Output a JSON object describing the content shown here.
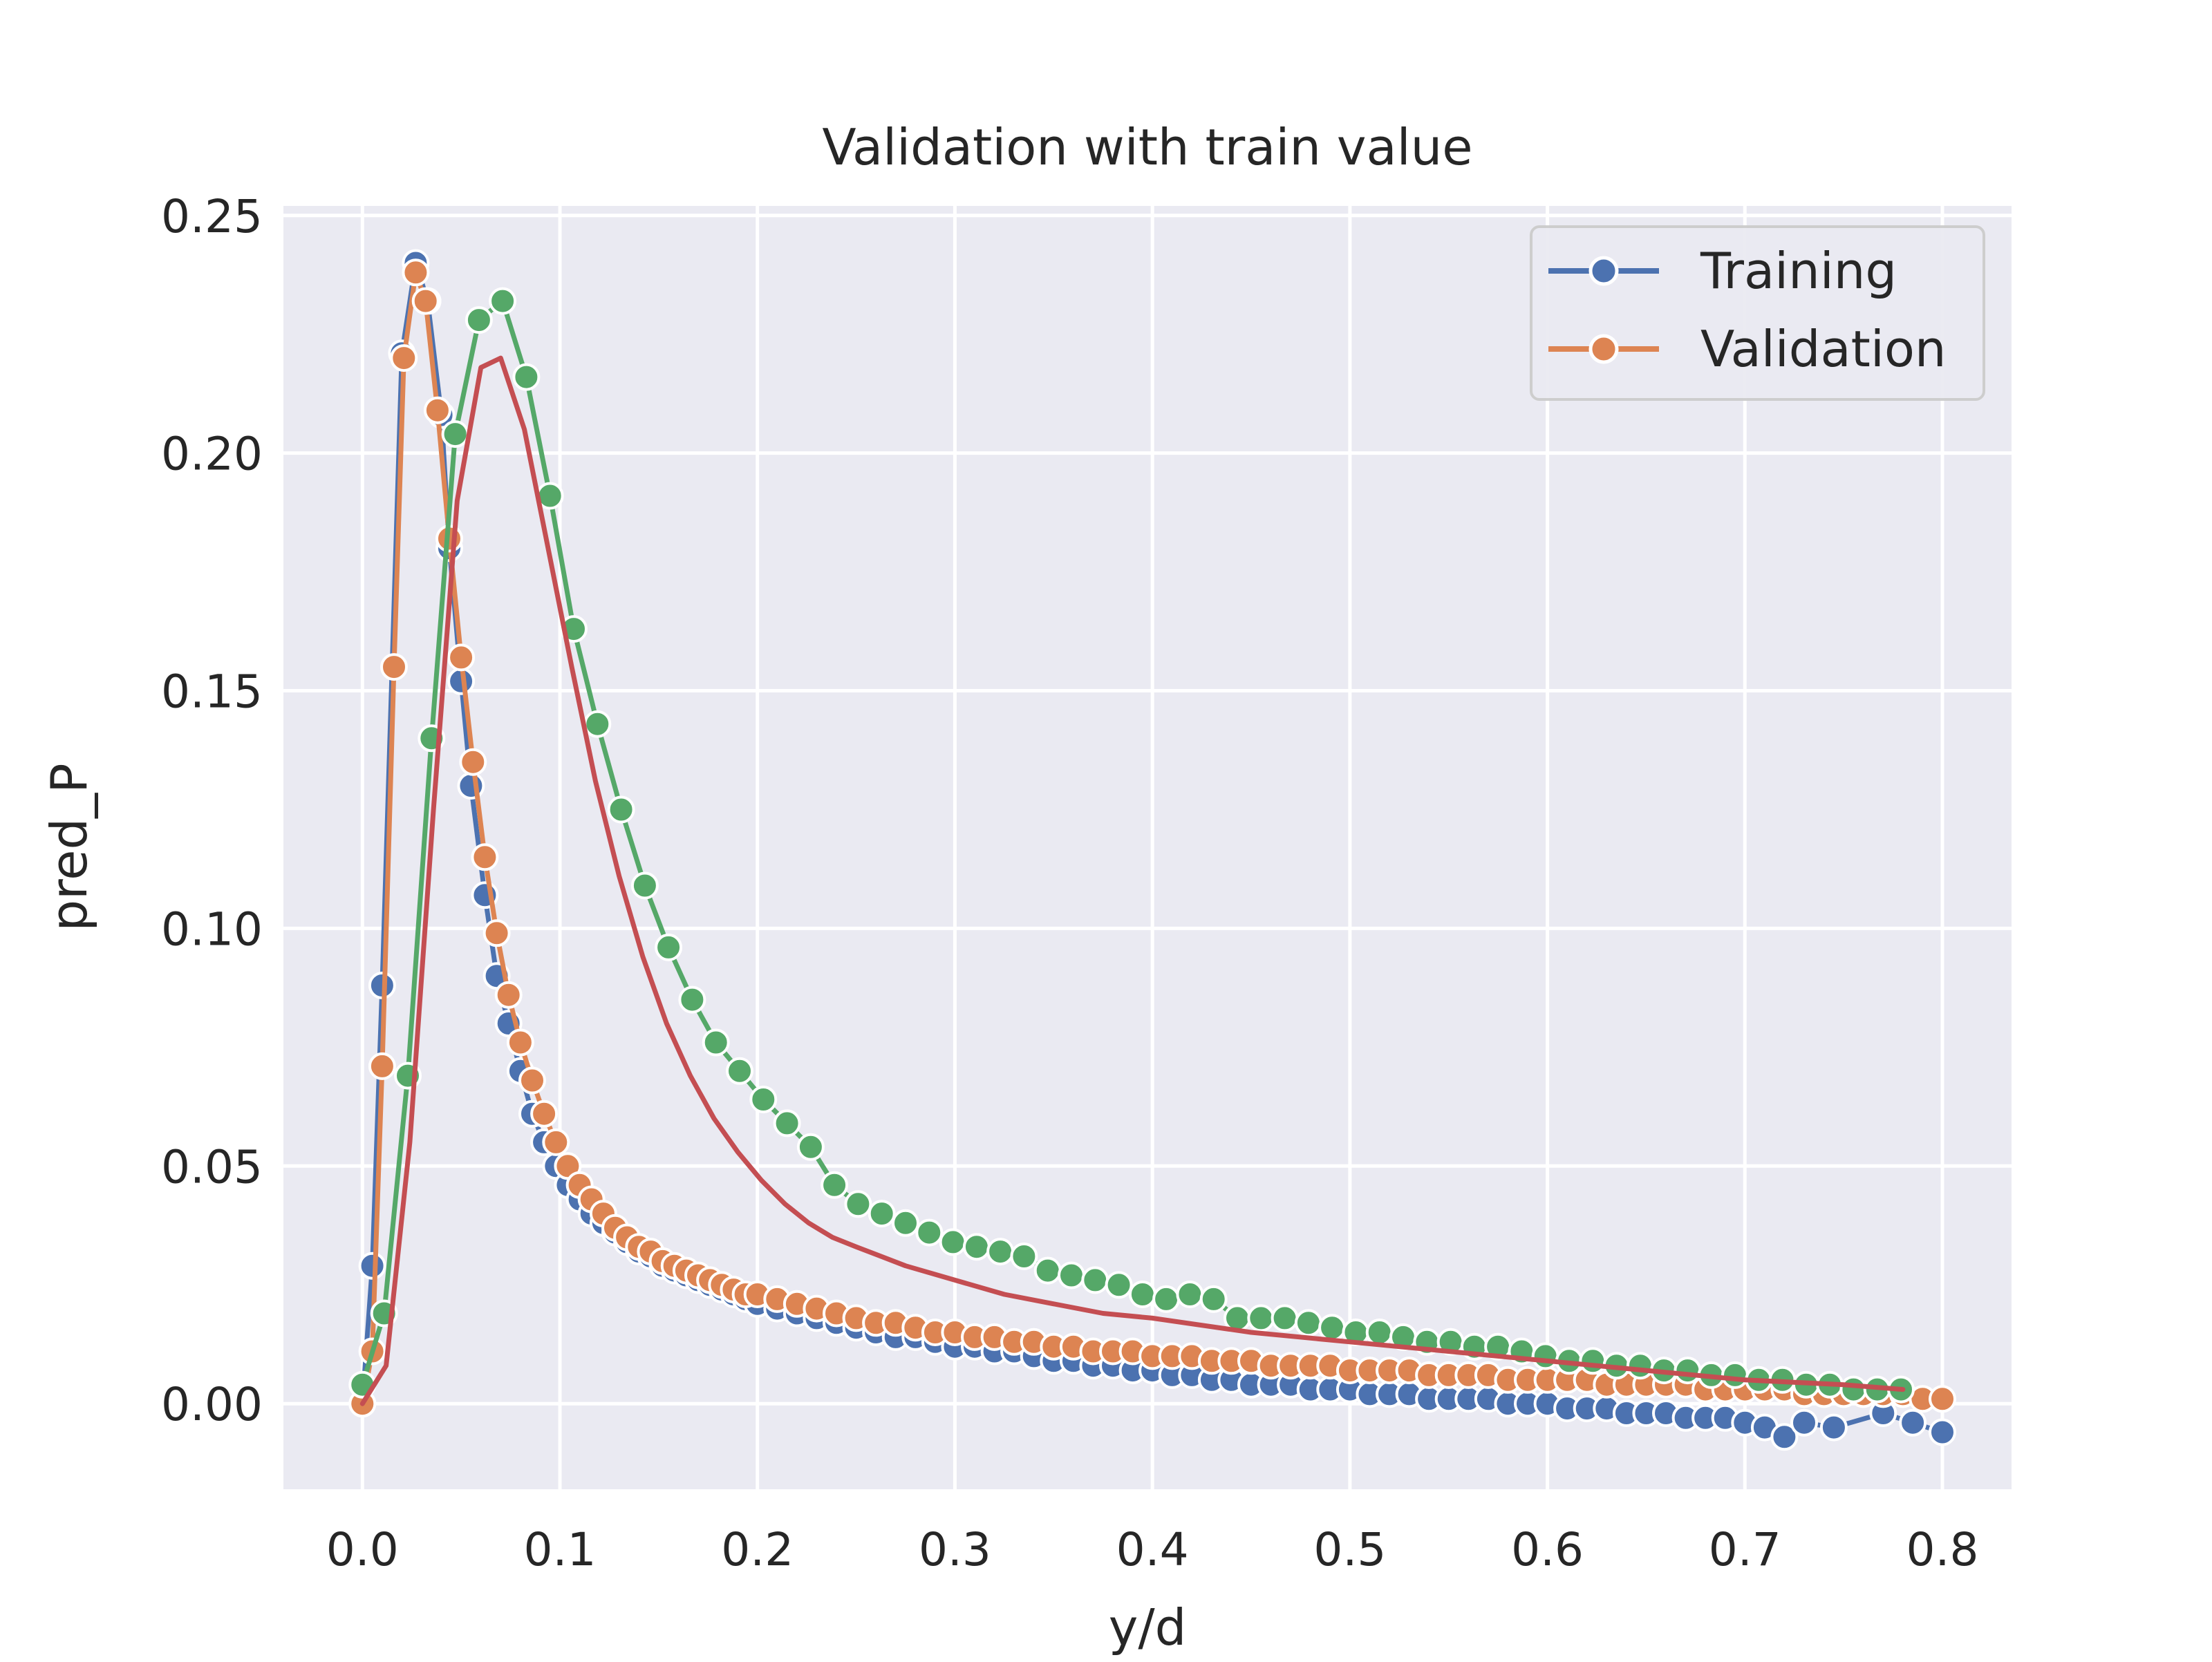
{
  "chart_data": {
    "type": "line",
    "title": "Validation with train value",
    "xlabel": "y/d",
    "ylabel": "pred_P",
    "xlim": [
      -0.04,
      0.835
    ],
    "ylim": [
      -0.018,
      0.252
    ],
    "xticks": [
      0.0,
      0.1,
      0.2,
      0.3,
      0.4,
      0.5,
      0.6,
      0.7,
      0.8
    ],
    "xtick_labels": [
      "0.0",
      "0.1",
      "0.2",
      "0.3",
      "0.4",
      "0.5",
      "0.6",
      "0.7",
      "0.8"
    ],
    "yticks": [
      0.0,
      0.05,
      0.1,
      0.15,
      0.2,
      0.25
    ],
    "ytick_labels": [
      "0.00",
      "0.05",
      "0.10",
      "0.15",
      "0.20",
      "0.25"
    ],
    "grid": true,
    "legend_position": "top-right",
    "series": [
      {
        "name": "Training",
        "color": "#4c72b0",
        "markers": true,
        "points": [
          [
            0.0,
            0.0
          ],
          [
            0.005,
            0.029
          ],
          [
            0.01,
            0.088
          ],
          [
            0.02,
            0.221
          ],
          [
            0.027,
            0.24
          ],
          [
            0.033,
            0.232
          ],
          [
            0.04,
            0.208
          ],
          [
            0.044,
            0.18
          ],
          [
            0.05,
            0.152
          ],
          [
            0.055,
            0.13
          ],
          [
            0.062,
            0.107
          ],
          [
            0.068,
            0.09
          ],
          [
            0.074,
            0.08
          ],
          [
            0.08,
            0.07
          ],
          [
            0.086,
            0.061
          ],
          [
            0.092,
            0.055
          ],
          [
            0.098,
            0.05
          ],
          [
            0.104,
            0.046
          ],
          [
            0.11,
            0.043
          ],
          [
            0.116,
            0.04
          ],
          [
            0.122,
            0.038
          ],
          [
            0.128,
            0.036
          ],
          [
            0.134,
            0.034
          ],
          [
            0.14,
            0.032
          ],
          [
            0.146,
            0.031
          ],
          [
            0.152,
            0.029
          ],
          [
            0.158,
            0.028
          ],
          [
            0.164,
            0.027
          ],
          [
            0.17,
            0.026
          ],
          [
            0.176,
            0.025
          ],
          [
            0.182,
            0.024
          ],
          [
            0.188,
            0.023
          ],
          [
            0.194,
            0.022
          ],
          [
            0.2,
            0.021
          ],
          [
            0.21,
            0.02
          ],
          [
            0.22,
            0.019
          ],
          [
            0.23,
            0.018
          ],
          [
            0.24,
            0.017
          ],
          [
            0.25,
            0.016
          ],
          [
            0.26,
            0.015
          ],
          [
            0.27,
            0.014
          ],
          [
            0.28,
            0.014
          ],
          [
            0.29,
            0.013
          ],
          [
            0.3,
            0.012
          ],
          [
            0.31,
            0.012
          ],
          [
            0.32,
            0.011
          ],
          [
            0.33,
            0.011
          ],
          [
            0.34,
            0.01
          ],
          [
            0.35,
            0.009
          ],
          [
            0.36,
            0.009
          ],
          [
            0.37,
            0.008
          ],
          [
            0.38,
            0.008
          ],
          [
            0.39,
            0.007
          ],
          [
            0.4,
            0.007
          ],
          [
            0.41,
            0.006
          ],
          [
            0.42,
            0.006
          ],
          [
            0.43,
            0.005
          ],
          [
            0.44,
            0.005
          ],
          [
            0.45,
            0.004
          ],
          [
            0.46,
            0.004
          ],
          [
            0.47,
            0.004
          ],
          [
            0.48,
            0.003
          ],
          [
            0.49,
            0.003
          ],
          [
            0.5,
            0.003
          ],
          [
            0.51,
            0.002
          ],
          [
            0.52,
            0.002
          ],
          [
            0.53,
            0.002
          ],
          [
            0.54,
            0.001
          ],
          [
            0.55,
            0.001
          ],
          [
            0.56,
            0.001
          ],
          [
            0.57,
            0.001
          ],
          [
            0.58,
            0.0
          ],
          [
            0.59,
            0.0
          ],
          [
            0.6,
            0.0
          ],
          [
            0.61,
            -0.001
          ],
          [
            0.62,
            -0.001
          ],
          [
            0.63,
            -0.001
          ],
          [
            0.64,
            -0.002
          ],
          [
            0.65,
            -0.002
          ],
          [
            0.66,
            -0.002
          ],
          [
            0.67,
            -0.003
          ],
          [
            0.68,
            -0.003
          ],
          [
            0.69,
            -0.003
          ],
          [
            0.7,
            -0.004
          ],
          [
            0.71,
            -0.005
          ],
          [
            0.72,
            -0.007
          ],
          [
            0.73,
            -0.004
          ],
          [
            0.745,
            -0.005
          ],
          [
            0.77,
            -0.002
          ],
          [
            0.785,
            -0.004
          ],
          [
            0.8,
            -0.006
          ]
        ]
      },
      {
        "name": "Validation",
        "color": "#dd8452",
        "markers": true,
        "points": [
          [
            0.0,
            0.0
          ],
          [
            0.005,
            0.011
          ],
          [
            0.01,
            0.071
          ],
          [
            0.016,
            0.155
          ],
          [
            0.021,
            0.22
          ],
          [
            0.027,
            0.238
          ],
          [
            0.032,
            0.232
          ],
          [
            0.038,
            0.209
          ],
          [
            0.044,
            0.182
          ],
          [
            0.05,
            0.157
          ],
          [
            0.056,
            0.135
          ],
          [
            0.062,
            0.115
          ],
          [
            0.068,
            0.099
          ],
          [
            0.074,
            0.086
          ],
          [
            0.08,
            0.076
          ],
          [
            0.086,
            0.068
          ],
          [
            0.092,
            0.061
          ],
          [
            0.098,
            0.055
          ],
          [
            0.104,
            0.05
          ],
          [
            0.11,
            0.046
          ],
          [
            0.116,
            0.043
          ],
          [
            0.122,
            0.04
          ],
          [
            0.128,
            0.037
          ],
          [
            0.134,
            0.035
          ],
          [
            0.14,
            0.033
          ],
          [
            0.146,
            0.032
          ],
          [
            0.152,
            0.03
          ],
          [
            0.158,
            0.029
          ],
          [
            0.164,
            0.028
          ],
          [
            0.17,
            0.027
          ],
          [
            0.176,
            0.026
          ],
          [
            0.182,
            0.025
          ],
          [
            0.188,
            0.024
          ],
          [
            0.194,
            0.023
          ],
          [
            0.2,
            0.023
          ],
          [
            0.21,
            0.022
          ],
          [
            0.22,
            0.021
          ],
          [
            0.23,
            0.02
          ],
          [
            0.24,
            0.019
          ],
          [
            0.25,
            0.018
          ],
          [
            0.26,
            0.017
          ],
          [
            0.27,
            0.017
          ],
          [
            0.28,
            0.016
          ],
          [
            0.29,
            0.015
          ],
          [
            0.3,
            0.015
          ],
          [
            0.31,
            0.014
          ],
          [
            0.32,
            0.014
          ],
          [
            0.33,
            0.013
          ],
          [
            0.34,
            0.013
          ],
          [
            0.35,
            0.012
          ],
          [
            0.36,
            0.012
          ],
          [
            0.37,
            0.011
          ],
          [
            0.38,
            0.011
          ],
          [
            0.39,
            0.011
          ],
          [
            0.4,
            0.01
          ],
          [
            0.41,
            0.01
          ],
          [
            0.42,
            0.01
          ],
          [
            0.43,
            0.009
          ],
          [
            0.44,
            0.009
          ],
          [
            0.45,
            0.009
          ],
          [
            0.46,
            0.008
          ],
          [
            0.47,
            0.008
          ],
          [
            0.48,
            0.008
          ],
          [
            0.49,
            0.008
          ],
          [
            0.5,
            0.007
          ],
          [
            0.51,
            0.007
          ],
          [
            0.52,
            0.007
          ],
          [
            0.53,
            0.007
          ],
          [
            0.54,
            0.006
          ],
          [
            0.55,
            0.006
          ],
          [
            0.56,
            0.006
          ],
          [
            0.57,
            0.006
          ],
          [
            0.58,
            0.005
          ],
          [
            0.59,
            0.005
          ],
          [
            0.6,
            0.005
          ],
          [
            0.61,
            0.005
          ],
          [
            0.62,
            0.005
          ],
          [
            0.63,
            0.004
          ],
          [
            0.64,
            0.004
          ],
          [
            0.65,
            0.004
          ],
          [
            0.66,
            0.004
          ],
          [
            0.67,
            0.004
          ],
          [
            0.68,
            0.003
          ],
          [
            0.69,
            0.003
          ],
          [
            0.7,
            0.003
          ],
          [
            0.71,
            0.003
          ],
          [
            0.72,
            0.003
          ],
          [
            0.73,
            0.002
          ],
          [
            0.74,
            0.002
          ],
          [
            0.75,
            0.002
          ],
          [
            0.76,
            0.002
          ],
          [
            0.77,
            0.002
          ],
          [
            0.78,
            0.002
          ],
          [
            0.79,
            0.001
          ],
          [
            0.8,
            0.001
          ]
        ]
      },
      {
        "color": "#55a868",
        "markers": true,
        "points": [
          [
            0.0,
            0.004
          ],
          [
            0.011,
            0.019
          ],
          [
            0.023,
            0.069
          ],
          [
            0.035,
            0.14
          ],
          [
            0.047,
            0.204
          ],
          [
            0.059,
            0.228
          ],
          [
            0.071,
            0.232
          ],
          [
            0.083,
            0.216
          ],
          [
            0.095,
            0.191
          ],
          [
            0.107,
            0.163
          ],
          [
            0.119,
            0.143
          ],
          [
            0.131,
            0.125
          ],
          [
            0.143,
            0.109
          ],
          [
            0.155,
            0.096
          ],
          [
            0.167,
            0.085
          ],
          [
            0.179,
            0.076
          ],
          [
            0.191,
            0.07
          ],
          [
            0.203,
            0.064
          ],
          [
            0.215,
            0.059
          ],
          [
            0.227,
            0.054
          ],
          [
            0.239,
            0.046
          ],
          [
            0.251,
            0.042
          ],
          [
            0.263,
            0.04
          ],
          [
            0.275,
            0.038
          ],
          [
            0.287,
            0.036
          ],
          [
            0.299,
            0.034
          ],
          [
            0.311,
            0.033
          ],
          [
            0.323,
            0.032
          ],
          [
            0.335,
            0.031
          ],
          [
            0.347,
            0.028
          ],
          [
            0.359,
            0.027
          ],
          [
            0.371,
            0.026
          ],
          [
            0.383,
            0.025
          ],
          [
            0.395,
            0.023
          ],
          [
            0.407,
            0.022
          ],
          [
            0.419,
            0.023
          ],
          [
            0.431,
            0.022
          ],
          [
            0.443,
            0.018
          ],
          [
            0.455,
            0.018
          ],
          [
            0.467,
            0.018
          ],
          [
            0.479,
            0.017
          ],
          [
            0.491,
            0.016
          ],
          [
            0.503,
            0.015
          ],
          [
            0.515,
            0.015
          ],
          [
            0.527,
            0.014
          ],
          [
            0.539,
            0.013
          ],
          [
            0.551,
            0.013
          ],
          [
            0.563,
            0.012
          ],
          [
            0.575,
            0.012
          ],
          [
            0.587,
            0.011
          ],
          [
            0.599,
            0.01
          ],
          [
            0.611,
            0.009
          ],
          [
            0.623,
            0.009
          ],
          [
            0.635,
            0.008
          ],
          [
            0.647,
            0.008
          ],
          [
            0.659,
            0.007
          ],
          [
            0.671,
            0.007
          ],
          [
            0.683,
            0.006
          ],
          [
            0.695,
            0.006
          ],
          [
            0.707,
            0.005
          ],
          [
            0.719,
            0.005
          ],
          [
            0.731,
            0.004
          ],
          [
            0.743,
            0.004
          ],
          [
            0.755,
            0.003
          ],
          [
            0.767,
            0.003
          ],
          [
            0.779,
            0.003
          ]
        ]
      },
      {
        "color": "#c44e52",
        "markers": false,
        "points": [
          [
            0.0,
            0.0
          ],
          [
            0.012,
            0.008
          ],
          [
            0.024,
            0.055
          ],
          [
            0.036,
            0.125
          ],
          [
            0.048,
            0.19
          ],
          [
            0.06,
            0.218
          ],
          [
            0.07,
            0.22
          ],
          [
            0.082,
            0.205
          ],
          [
            0.094,
            0.18
          ],
          [
            0.106,
            0.155
          ],
          [
            0.118,
            0.131
          ],
          [
            0.13,
            0.111
          ],
          [
            0.142,
            0.094
          ],
          [
            0.154,
            0.08
          ],
          [
            0.166,
            0.069
          ],
          [
            0.178,
            0.06
          ],
          [
            0.19,
            0.053
          ],
          [
            0.202,
            0.047
          ],
          [
            0.214,
            0.042
          ],
          [
            0.226,
            0.038
          ],
          [
            0.238,
            0.035
          ],
          [
            0.25,
            0.033
          ],
          [
            0.275,
            0.029
          ],
          [
            0.3,
            0.026
          ],
          [
            0.325,
            0.023
          ],
          [
            0.35,
            0.021
          ],
          [
            0.375,
            0.019
          ],
          [
            0.4,
            0.018
          ],
          [
            0.45,
            0.015
          ],
          [
            0.5,
            0.013
          ],
          [
            0.55,
            0.011
          ],
          [
            0.6,
            0.009
          ],
          [
            0.65,
            0.007
          ],
          [
            0.7,
            0.005
          ],
          [
            0.75,
            0.004
          ],
          [
            0.78,
            0.003
          ]
        ]
      }
    ]
  }
}
